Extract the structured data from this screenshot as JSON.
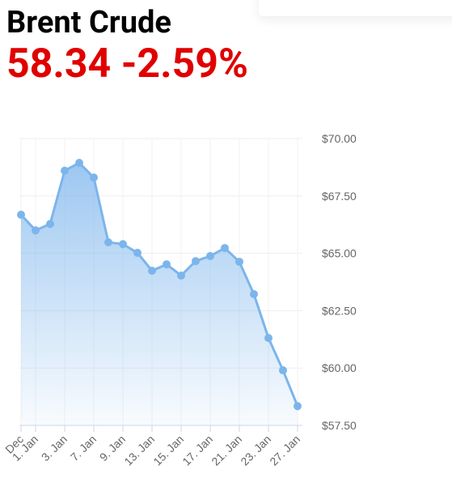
{
  "header": {
    "title": "Brent Crude",
    "price": "58.34",
    "change": "-2.59%"
  },
  "chart_data": {
    "type": "area",
    "categories": [
      "Dec",
      "1. Jan",
      null,
      "3. Jan",
      null,
      "7. Jan",
      null,
      "9. Jan",
      null,
      "13. Jan",
      null,
      "15. Jan",
      null,
      "17. Jan",
      null,
      "21. Jan",
      null,
      "23. Jan",
      null,
      "27. Jan"
    ],
    "values": [
      66.68,
      66.0,
      66.28,
      68.6,
      68.94,
      68.3,
      65.48,
      65.4,
      65.02,
      64.24,
      64.52,
      64.03,
      64.66,
      64.88,
      65.23,
      64.63,
      63.22,
      61.31,
      59.9,
      58.34
    ],
    "color": "#7cb5ec",
    "ylim": [
      57.5,
      70
    ],
    "yticks": [
      {
        "value": 57.5,
        "label": "$57.50"
      },
      {
        "value": 60,
        "label": "$60.00"
      },
      {
        "value": 62.5,
        "label": "$62.50"
      },
      {
        "value": 65,
        "label": "$65.00"
      },
      {
        "value": 67.5,
        "label": "$67.50"
      },
      {
        "value": 70,
        "label": "$70.00"
      }
    ],
    "grid": true
  }
}
